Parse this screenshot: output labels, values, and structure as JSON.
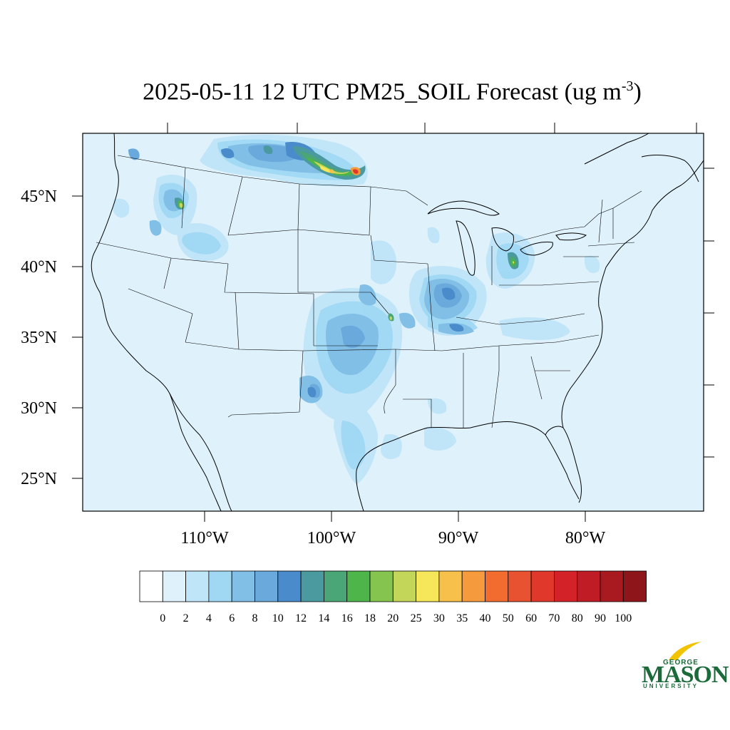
{
  "title": {
    "main": "2025-05-11 12 UTC PM25_SOIL Forecast (ug m",
    "superscript": "-3",
    "close": ")"
  },
  "map": {
    "background_color": "#dff1fb",
    "lat_labels": [
      "45°N",
      "40°N",
      "35°N",
      "30°N",
      "25°N"
    ],
    "lon_labels": [
      "110°W",
      "100°W",
      "90°W",
      "80°W"
    ]
  },
  "colorbar": {
    "labels": [
      "0",
      "2",
      "4",
      "6",
      "8",
      "10",
      "12",
      "14",
      "16",
      "18",
      "20",
      "25",
      "30",
      "35",
      "40",
      "50",
      "60",
      "70",
      "80",
      "90",
      "100"
    ],
    "colors": [
      "#ffffff",
      "#dff1fb",
      "#bfe5f8",
      "#a0d8f4",
      "#82bfe6",
      "#69a9dc",
      "#4a8ccb",
      "#4a9aa0",
      "#4aa676",
      "#4db54a",
      "#85c44f",
      "#c3d65a",
      "#f6e65a",
      "#f6c04a",
      "#f59b3e",
      "#f26b2f",
      "#e85230",
      "#e0392b",
      "#d42229",
      "#bf1c25",
      "#a81a1f",
      "#8e161a"
    ]
  },
  "logo": {
    "line1": "GEORGE",
    "line2": "MASON",
    "line3": "UNIVERSITY",
    "color": "#1a6a3a",
    "accent_color": "#f2c300"
  }
}
